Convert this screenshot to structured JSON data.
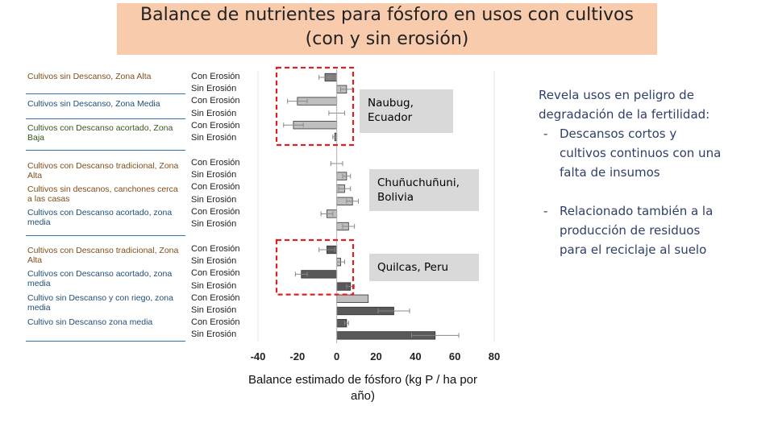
{
  "title": [
    "Balance de nutrientes para fósforo en usos con cultivos",
    "(con y sin erosión)"
  ],
  "colors": {
    "title_bg": "#f8cbad",
    "alta": "#7f4f1a",
    "media": "#1f4e79",
    "baja": "#375623",
    "rule": "#2e75b6",
    "box_red": "#e02020",
    "site_bg": "#d9d9d9",
    "note_text": "#2f3f6a",
    "bar_con": "#7f7f7f",
    "bar_sin": "#bfbfbf",
    "bar_dark": "#595959"
  },
  "row_labels": [
    {
      "text": "Cultivos sin Descanso, Zona Alta",
      "color": "alta"
    },
    {
      "text": "Cultivos sin Descanso, Zona Media",
      "color": "media"
    },
    {
      "text": "Cultivos con Descanso acortado, Zona Baja",
      "color": "baja"
    },
    {
      "text": "Cultivos con Descanso tradicional, Zona Alta",
      "color": "alta"
    },
    {
      "text": "Cultivos sin descanos, canchones cerca a las casas",
      "color": "alta"
    },
    {
      "text": "Cultivos con Descanso acortado, zona media",
      "color": "media"
    },
    {
      "text": "Cultivos con Descanso tradicional, Zona Alta",
      "color": "alta"
    },
    {
      "text": "Cultivos con Descanso acortado, zona media",
      "color": "media"
    },
    {
      "text": "Cultivo sin Descanso y con riego, zona media",
      "color": "media"
    },
    {
      "text": "Cultivo sin Descanso zona media",
      "color": "media"
    }
  ],
  "erosion_labels": {
    "con": "Con Erosión",
    "sin": "Sin Erosión"
  },
  "sites": [
    "Naubug, Ecuador",
    "Chuñuchuñuni, Bolivia",
    "Quilcas, Peru"
  ],
  "note": {
    "intro": "Revela usos en peligro de degradación de la fertilidad:",
    "bullets": [
      "Descansos cortos y cultivos continuos con una falta de insumos",
      "Relacionado también a la producción de residuos para el reciclaje al suelo"
    ]
  },
  "chart_data": {
    "type": "bar",
    "orientation": "horizontal",
    "xlabel": "Balance estimado de fósforo (kg P / ha por año)",
    "ylabel": "",
    "xlim": [
      -40,
      80
    ],
    "xticks": [
      -40,
      -20,
      0,
      20,
      40,
      60,
      80
    ],
    "grid": "vertical lines at -40 and 80",
    "categories": [
      "Naubug Con Erosión",
      "Naubug Sin Erosión",
      "Naubug Con Erosión",
      "Naubug Sin Erosión",
      "Naubug Con Erosión",
      "Naubug Sin Erosión",
      "Chuñuchuñuni Con Erosión",
      "Chuñuchuñuni Sin Erosión",
      "Chuñuchuñuni Con Erosión",
      "Chuñuchuñuni Sin Erosión",
      "Chuñuchuñuni Con Erosión",
      "Chuñuchuñuni Sin Erosión",
      "Quilcas Con Erosión",
      "Quilcas Sin Erosión",
      "Quilcas Con Erosión",
      "Quilcas Sin Erosión",
      "Quilcas Con Erosión",
      "Quilcas Sin Erosión",
      "Quilcas Con Erosión",
      "Quilcas Sin Erosión"
    ],
    "values": [
      -6,
      5,
      -20,
      0,
      -22,
      -1,
      0,
      5,
      4,
      8,
      -5,
      6,
      -5,
      2,
      -18,
      7,
      16,
      29,
      5,
      50
    ],
    "errors": [
      3,
      3,
      5,
      4,
      5,
      1,
      3,
      2,
      3,
      3,
      3,
      3,
      4,
      2,
      3,
      2,
      0,
      8,
      1,
      12
    ],
    "styles": [
      "con",
      "sin",
      "sin",
      "sin",
      "sin",
      "con",
      "sin",
      "sin",
      "sin",
      "sin",
      "sin",
      "sin",
      "dark",
      "sin",
      "dark",
      "dark",
      "sin",
      "dark",
      "dark",
      "dark"
    ],
    "highlighted_groups": [
      [
        0,
        5
      ],
      [
        12,
        15
      ]
    ]
  }
}
